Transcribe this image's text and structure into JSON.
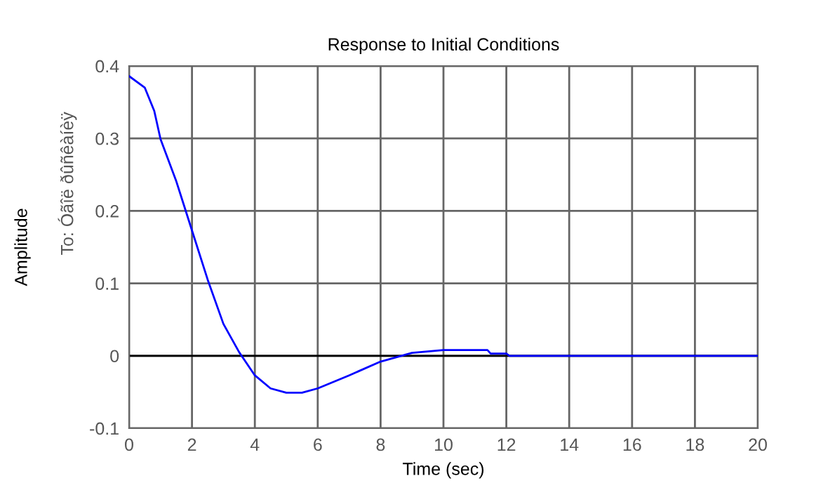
{
  "chart_data": {
    "type": "line",
    "title": "Response to Initial Conditions",
    "xlabel": "Time (sec)",
    "ylabel": "Amplitude\nTo: Óãîë ðûñêàíèÿ",
    "x": [
      0,
      0.5,
      0.8,
      1,
      1.5,
      2,
      2.5,
      3,
      3.5,
      4,
      4.5,
      5,
      5.5,
      6,
      7,
      8,
      9,
      10,
      11.4,
      11.5,
      12,
      12.1,
      20
    ],
    "series": [
      {
        "color": "#0000ff",
        "values": [
          0.386,
          0.37,
          0.338,
          0.299,
          0.241,
          0.173,
          0.105,
          0.044,
          0.005,
          -0.027,
          -0.045,
          -0.051,
          -0.051,
          -0.045,
          -0.027,
          -0.008,
          0.004,
          0.008,
          0.008,
          0.003,
          0.003,
          0,
          0
        ]
      }
    ],
    "xlim": [
      0,
      20
    ],
    "xticks": [
      0,
      2,
      4,
      6,
      8,
      10,
      12,
      14,
      16,
      18,
      20
    ],
    "ylim": [
      -0.1,
      0.4
    ],
    "yticks": [
      -0.1,
      0,
      0.1,
      0.2,
      0.3,
      0.4
    ],
    "ref_lines": [
      {
        "axis": "y",
        "value": 0,
        "color": "#000000"
      }
    ],
    "grid": true,
    "legend": false,
    "marker": "none",
    "line_style": "solid"
  }
}
